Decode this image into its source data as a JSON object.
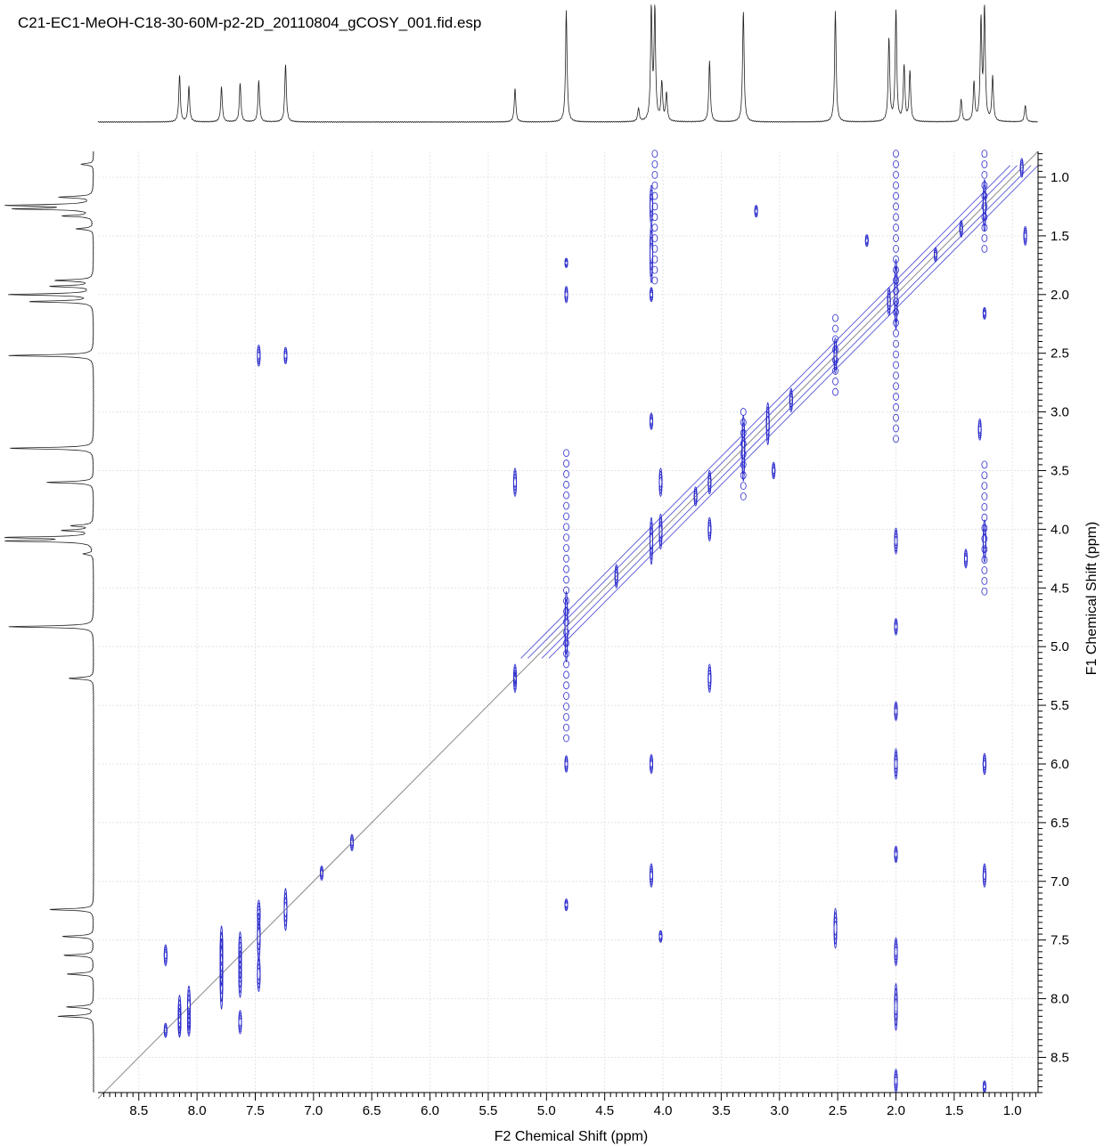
{
  "file_title": "C21-EC1-MeOH-C18-30-60M-p2-2D_20110804_gCOSY_001.fid.esp",
  "chart_data": {
    "type": "contour",
    "experiment": "gCOSY",
    "xlabel": "F2 Chemical Shift (ppm)",
    "ylabel": "F1 Chemical Shift (ppm)",
    "xlim": [
      8.85,
      0.78
    ],
    "ylim": [
      0.78,
      8.8
    ],
    "x_ticks": [
      8.5,
      8.0,
      7.5,
      7.0,
      6.5,
      6.0,
      5.5,
      5.0,
      4.5,
      4.0,
      3.5,
      3.0,
      2.5,
      2.0,
      1.5,
      1.0
    ],
    "x_tick_labels": [
      "8.5",
      "8.0",
      "7.5",
      "7.0",
      "6.5",
      "6.0",
      "5.5",
      "5.0",
      "4.5",
      "4.0",
      "3.5",
      "3.0",
      "2.5",
      "2.0",
      "1.5",
      "1.0"
    ],
    "y_ticks": [
      1.0,
      1.5,
      2.0,
      2.5,
      3.0,
      3.5,
      4.0,
      4.5,
      5.0,
      5.5,
      6.0,
      6.5,
      7.0,
      7.5,
      8.0,
      8.5
    ],
    "y_tick_labels": [
      "1.0",
      "1.5",
      "2.0",
      "2.5",
      "3.0",
      "3.5",
      "4.0",
      "4.5",
      "5.0",
      "5.5",
      "6.0",
      "6.5",
      "7.0",
      "7.5",
      "8.0",
      "8.5"
    ],
    "grid": true,
    "contour_color": "#2b2bcc",
    "projection_peaks": [
      {
        "ppm": 8.15,
        "height": 0.42
      },
      {
        "ppm": 8.07,
        "height": 0.32
      },
      {
        "ppm": 7.79,
        "height": 0.32
      },
      {
        "ppm": 7.63,
        "height": 0.35
      },
      {
        "ppm": 7.47,
        "height": 0.37
      },
      {
        "ppm": 7.24,
        "height": 0.52
      },
      {
        "ppm": 5.27,
        "height": 0.3
      },
      {
        "ppm": 4.83,
        "height": 1.0
      },
      {
        "ppm": 4.21,
        "height": 0.12
      },
      {
        "ppm": 4.1,
        "height": 1.0
      },
      {
        "ppm": 4.07,
        "height": 1.0
      },
      {
        "ppm": 4.01,
        "height": 0.35
      },
      {
        "ppm": 3.97,
        "height": 0.25
      },
      {
        "ppm": 3.6,
        "height": 0.55
      },
      {
        "ppm": 3.31,
        "height": 1.0
      },
      {
        "ppm": 2.52,
        "height": 1.0
      },
      {
        "ppm": 2.06,
        "height": 0.75
      },
      {
        "ppm": 2.0,
        "height": 1.0
      },
      {
        "ppm": 1.93,
        "height": 0.5
      },
      {
        "ppm": 1.88,
        "height": 0.45
      },
      {
        "ppm": 1.44,
        "height": 0.2
      },
      {
        "ppm": 1.33,
        "height": 0.35
      },
      {
        "ppm": 1.27,
        "height": 0.9
      },
      {
        "ppm": 1.24,
        "height": 1.0
      },
      {
        "ppm": 1.17,
        "height": 0.4
      },
      {
        "ppm": 0.89,
        "height": 0.15
      }
    ],
    "diagonal_peaks": [
      {
        "x": 8.27,
        "y": 8.27,
        "rx": 0.03,
        "ry": 0.06
      },
      {
        "x": 8.15,
        "y": 8.15,
        "rx": 0.05,
        "ry": 0.18
      },
      {
        "x": 8.07,
        "y": 8.07,
        "rx": 0.05,
        "ry": 0.18
      },
      {
        "x": 7.79,
        "y": 7.79,
        "rx": 0.06,
        "ry": 0.3
      },
      {
        "x": 7.63,
        "y": 7.63,
        "rx": 0.06,
        "ry": 0.2
      },
      {
        "x": 7.47,
        "y": 7.47,
        "rx": 0.06,
        "ry": 0.2
      },
      {
        "x": 7.24,
        "y": 7.24,
        "rx": 0.06,
        "ry": 0.18
      },
      {
        "x": 6.93,
        "y": 6.93,
        "rx": 0.08,
        "ry": 0.06
      },
      {
        "x": 6.67,
        "y": 6.67,
        "rx": 0.04,
        "ry": 0.07
      },
      {
        "x": 5.27,
        "y": 5.27,
        "rx": 0.05,
        "ry": 0.05
      },
      {
        "x": 4.83,
        "y": 4.83,
        "rx": 0.06,
        "ry": 0.3
      },
      {
        "x": 4.4,
        "y": 4.4,
        "rx": 0.1,
        "ry": 0.1
      },
      {
        "x": 4.1,
        "y": 4.1,
        "rx": 0.06,
        "ry": 0.2
      },
      {
        "x": 4.02,
        "y": 4.02,
        "rx": 0.05,
        "ry": 0.15
      },
      {
        "x": 3.72,
        "y": 3.72,
        "rx": 0.05,
        "ry": 0.08
      },
      {
        "x": 3.6,
        "y": 3.6,
        "rx": 0.06,
        "ry": 0.1
      },
      {
        "x": 3.31,
        "y": 3.31,
        "rx": 0.05,
        "ry": 0.28
      },
      {
        "x": 3.1,
        "y": 3.1,
        "rx": 0.06,
        "ry": 0.18
      },
      {
        "x": 2.9,
        "y": 2.9,
        "rx": 0.04,
        "ry": 0.1
      },
      {
        "x": 2.52,
        "y": 2.52,
        "rx": 0.05,
        "ry": 0.15
      },
      {
        "x": 2.06,
        "y": 2.06,
        "rx": 0.05,
        "ry": 0.12
      },
      {
        "x": 2.0,
        "y": 2.0,
        "rx": 0.06,
        "ry": 0.3
      },
      {
        "x": 1.66,
        "y": 1.66,
        "rx": 0.06,
        "ry": 0.06
      },
      {
        "x": 1.44,
        "y": 1.44,
        "rx": 0.06,
        "ry": 0.07
      },
      {
        "x": 1.24,
        "y": 1.24,
        "rx": 0.06,
        "ry": 0.22
      },
      {
        "x": 0.92,
        "y": 0.92,
        "rx": 0.06,
        "ry": 0.08
      }
    ],
    "cross_peaks": [
      {
        "x": 7.47,
        "y": 2.52,
        "rx": 0.035,
        "ry": 0.09
      },
      {
        "x": 7.24,
        "y": 2.52,
        "rx": 0.035,
        "ry": 0.07
      },
      {
        "x": 4.1,
        "y": 1.24,
        "rx": 0.13,
        "ry": 0.17
      },
      {
        "x": 4.1,
        "y": 1.65,
        "rx": 0.025,
        "ry": 0.25
      },
      {
        "x": 4.1,
        "y": 2.0,
        "rx": 0.02,
        "ry": 0.06
      },
      {
        "x": 4.83,
        "y": 1.73,
        "rx": 0.012,
        "ry": 0.04
      },
      {
        "x": 4.83,
        "y": 2.0,
        "rx": 0.015,
        "ry": 0.07
      },
      {
        "x": 3.2,
        "y": 1.29,
        "rx": 0.015,
        "ry": 0.05
      },
      {
        "x": 2.25,
        "y": 1.54,
        "rx": 0.015,
        "ry": 0.05
      },
      {
        "x": 0.89,
        "y": 1.5,
        "rx": 0.025,
        "ry": 0.08
      },
      {
        "x": 1.24,
        "y": 2.16,
        "rx": 0.02,
        "ry": 0.05
      },
      {
        "x": 5.27,
        "y": 3.6,
        "rx": 0.045,
        "ry": 0.12
      },
      {
        "x": 3.6,
        "y": 5.27,
        "rx": 0.045,
        "ry": 0.12
      },
      {
        "x": 5.27,
        "y": 5.27,
        "rx": 0.045,
        "ry": 0.12
      },
      {
        "x": 3.6,
        "y": 4.0,
        "rx": 0.045,
        "ry": 0.1
      },
      {
        "x": 4.02,
        "y": 3.6,
        "rx": 0.045,
        "ry": 0.12
      },
      {
        "x": 3.05,
        "y": 3.5,
        "rx": 0.015,
        "ry": 0.07
      },
      {
        "x": 4.1,
        "y": 3.08,
        "rx": 0.012,
        "ry": 0.07
      },
      {
        "x": 1.28,
        "y": 3.15,
        "rx": 0.025,
        "ry": 0.09
      },
      {
        "x": 1.24,
        "y": 4.1,
        "rx": 0.15,
        "ry": 0.18
      },
      {
        "x": 1.4,
        "y": 4.25,
        "rx": 0.04,
        "ry": 0.08
      },
      {
        "x": 2.0,
        "y": 4.1,
        "rx": 0.035,
        "ry": 0.11
      },
      {
        "x": 2.0,
        "y": 4.83,
        "rx": 0.02,
        "ry": 0.07
      },
      {
        "x": 2.0,
        "y": 5.55,
        "rx": 0.015,
        "ry": 0.08
      },
      {
        "x": 2.0,
        "y": 6.0,
        "rx": 0.035,
        "ry": 0.13
      },
      {
        "x": 4.1,
        "y": 6.0,
        "rx": 0.035,
        "ry": 0.08
      },
      {
        "x": 1.24,
        "y": 6.0,
        "rx": 0.035,
        "ry": 0.09
      },
      {
        "x": 4.83,
        "y": 6.0,
        "rx": 0.01,
        "ry": 0.07
      },
      {
        "x": 2.0,
        "y": 6.77,
        "rx": 0.015,
        "ry": 0.07
      },
      {
        "x": 4.1,
        "y": 6.95,
        "rx": 0.035,
        "ry": 0.1
      },
      {
        "x": 1.24,
        "y": 6.95,
        "rx": 0.035,
        "ry": 0.1
      },
      {
        "x": 4.83,
        "y": 7.2,
        "rx": 0.01,
        "ry": 0.05
      },
      {
        "x": 2.52,
        "y": 7.4,
        "rx": 0.035,
        "ry": 0.17
      },
      {
        "x": 4.02,
        "y": 7.47,
        "rx": 0.015,
        "ry": 0.05
      },
      {
        "x": 2.0,
        "y": 7.6,
        "rx": 0.02,
        "ry": 0.12
      },
      {
        "x": 2.0,
        "y": 8.07,
        "rx": 0.02,
        "ry": 0.2
      },
      {
        "x": 8.27,
        "y": 7.63,
        "rx": 0.035,
        "ry": 0.09
      },
      {
        "x": 7.79,
        "y": 7.63,
        "rx": 0.05,
        "ry": 0.25
      },
      {
        "x": 7.63,
        "y": 7.79,
        "rx": 0.05,
        "ry": 0.2
      },
      {
        "x": 7.47,
        "y": 7.79,
        "rx": 0.05,
        "ry": 0.15
      },
      {
        "x": 7.63,
        "y": 8.2,
        "rx": 0.035,
        "ry": 0.1
      },
      {
        "x": 7.47,
        "y": 7.28,
        "rx": 0.03,
        "ry": 0.12
      },
      {
        "x": 8.15,
        "y": 8.2,
        "rx": 0.04,
        "ry": 0.12
      },
      {
        "x": 8.07,
        "y": 8.2,
        "rx": 0.04,
        "ry": 0.12
      },
      {
        "x": 2.0,
        "y": 8.7,
        "rx": 0.02,
        "ry": 0.1
      },
      {
        "x": 1.24,
        "y": 8.75,
        "rx": 0.015,
        "ry": 0.05
      }
    ],
    "ridges": [
      {
        "x": 4.83,
        "y0": 3.35,
        "y1": 5.8
      },
      {
        "x": 4.07,
        "y0": 0.8,
        "y1": 1.9
      },
      {
        "x": 2.0,
        "y0": 0.8,
        "y1": 3.3
      },
      {
        "x": 3.31,
        "y0": 3.0,
        "y1": 3.75
      },
      {
        "x": 2.52,
        "y0": 2.2,
        "y1": 2.9
      },
      {
        "x": 1.24,
        "y0": 0.8,
        "y1": 1.7
      },
      {
        "x": 1.24,
        "y0": 3.45,
        "y1": 4.6
      }
    ]
  }
}
